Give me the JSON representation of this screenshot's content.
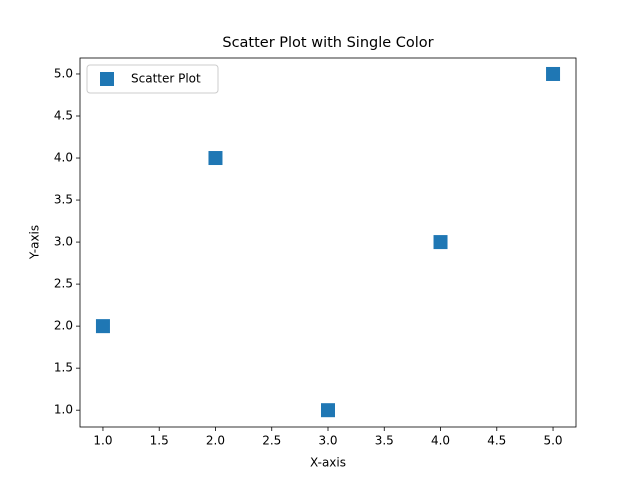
{
  "chart_data": {
    "type": "scatter",
    "title": "Scatter Plot with Single Color",
    "x_label": "X-axis",
    "y_label": "Y-axis",
    "series": [
      {
        "name": "Scatter Plot",
        "color": "#1f77b4",
        "x": [
          1,
          2,
          3,
          4,
          5
        ],
        "values": [
          2,
          4,
          1,
          3,
          5
        ]
      }
    ],
    "xlim": [
      0.796,
      5.204
    ],
    "ylim": [
      0.8,
      5.19
    ],
    "xticks": [
      {
        "value": 1,
        "label": "1.0"
      },
      {
        "value": 1.5,
        "label": "1.5"
      },
      {
        "value": 2,
        "label": "2.0"
      },
      {
        "value": 2.5,
        "label": "2.5"
      },
      {
        "value": 3,
        "label": "3.0"
      },
      {
        "value": 3.5,
        "label": "3.5"
      },
      {
        "value": 4,
        "label": "4.0"
      },
      {
        "value": 4.5,
        "label": "4.5"
      },
      {
        "value": 5,
        "label": "5.0"
      }
    ],
    "yticks": [
      {
        "value": 1,
        "label": "1.0"
      },
      {
        "value": 1.5,
        "label": "1.5"
      },
      {
        "value": 2,
        "label": "2.0"
      },
      {
        "value": 2.5,
        "label": "2.5"
      },
      {
        "value": 3,
        "label": "3.0"
      },
      {
        "value": 3.5,
        "label": "3.5"
      },
      {
        "value": 4,
        "label": "4.0"
      },
      {
        "value": 4.5,
        "label": "4.5"
      },
      {
        "value": 5,
        "label": "5.0"
      }
    ],
    "legend": "upper left",
    "grid": false
  }
}
